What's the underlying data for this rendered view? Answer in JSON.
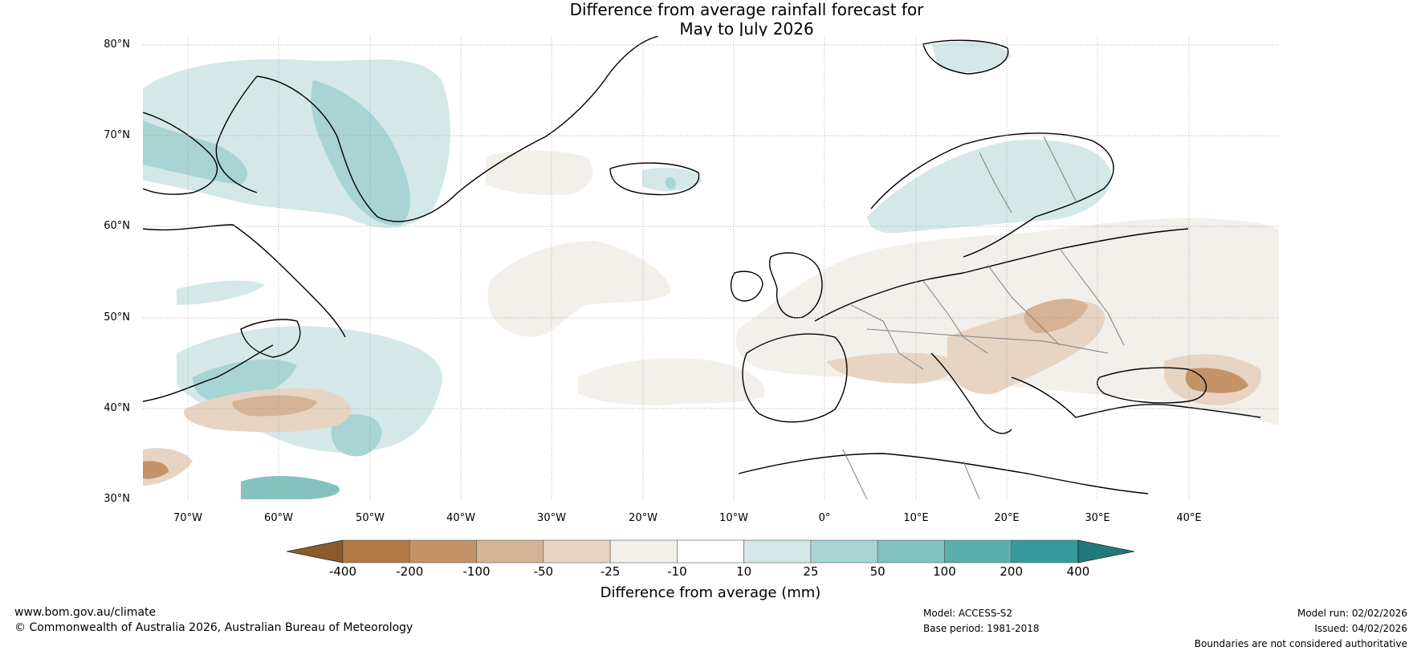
{
  "title": {
    "line1": "Difference from average rainfall forecast for",
    "line2": "May to July 2026"
  },
  "map": {
    "latitude_labels": [
      "80°N",
      "70°N",
      "60°N",
      "50°N",
      "40°N",
      "30°N"
    ],
    "longitude_labels": [
      "70°W",
      "60°W",
      "50°W",
      "40°W",
      "30°W",
      "20°W",
      "10°W",
      "0°",
      "10°E",
      "20°E",
      "30°E",
      "40°E"
    ],
    "region_extent": {
      "lon_min": -75,
      "lon_max": 50,
      "lat_min": 30,
      "lat_max": 81
    }
  },
  "colorbar": {
    "label": "Difference from average (mm)",
    "tick_labels": [
      "-400",
      "-200",
      "-100",
      "-50",
      "-25",
      "-10",
      "10",
      "25",
      "50",
      "100",
      "200",
      "400"
    ],
    "colors": [
      "#8a5a2b",
      "#b07a44",
      "#c49468",
      "#d5b394",
      "#e7d4c3",
      "#f3efea",
      "#ffffff",
      "#d4e8e8",
      "#a8d4d3",
      "#84c2c0",
      "#5caeac",
      "#36999a",
      "#23797a"
    ]
  },
  "footer": {
    "website": "www.bom.gov.au/climate",
    "copyright": "© Commonwealth of Australia 2026, Australian Bureau of Meteorology",
    "model": "Model: ACCESS-S2",
    "base_period": "Base period: 1981-2018",
    "model_run": "Model run: 02/02/2026",
    "issued": "Issued: 04/02/2026",
    "disclaimer": "Boundaries are not considered authoritative"
  }
}
